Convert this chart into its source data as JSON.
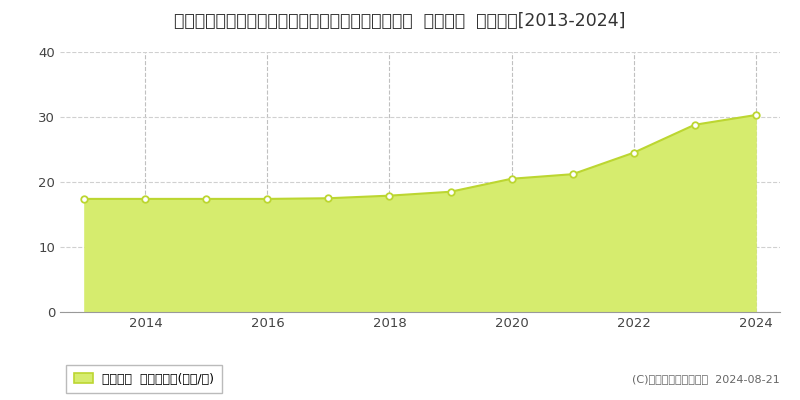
{
  "title": "北海道札幌市北区新琴似５条８丁目４８８番５０外  地価公示  地価推移[2013-2024]",
  "plot_years": [
    2013,
    2014,
    2015,
    2016,
    2017,
    2018,
    2019,
    2020,
    2021,
    2022,
    2023,
    2024
  ],
  "plot_values": [
    17.4,
    17.4,
    17.4,
    17.4,
    17.5,
    17.9,
    18.5,
    20.5,
    21.2,
    24.5,
    28.8,
    30.3
  ],
  "line_color": "#bcd631",
  "fill_color": "#d6ec6e",
  "marker_face_color": "#ffffff",
  "marker_edge_color": "#bcd631",
  "background_color": "#ffffff",
  "grid_h_color": "#d0d0d0",
  "grid_v_color": "#c0c0c0",
  "ylim": [
    0,
    40
  ],
  "yticks": [
    0,
    10,
    20,
    30,
    40
  ],
  "xlim_start": 2012.6,
  "xlim_end": 2024.4,
  "xticks": [
    2014,
    2016,
    2018,
    2020,
    2022,
    2024
  ],
  "legend_label": "地価公示  平均坪単価(万円/坪)",
  "copyright_text": "(C)土地価格ドットコム  2024-08-21",
  "title_fontsize": 12.5,
  "axis_fontsize": 9.5,
  "legend_fontsize": 9,
  "copyright_fontsize": 8
}
